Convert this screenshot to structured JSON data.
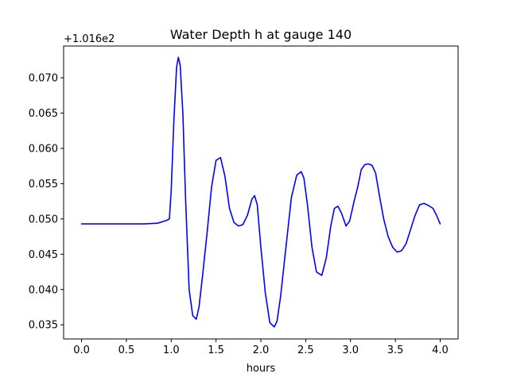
{
  "chart_data": {
    "type": "line",
    "title": "Water Depth h at gauge 140",
    "xlabel": "hours",
    "ylabel": "",
    "y_offset_text": "+1.016e2",
    "xlim": [
      -0.2,
      4.2
    ],
    "ylim": [
      0.033,
      0.0745
    ],
    "x_ticks": [
      0.0,
      0.5,
      1.0,
      1.5,
      2.0,
      2.5,
      3.0,
      3.5,
      4.0
    ],
    "x_tick_labels": [
      "0.0",
      "0.5",
      "1.0",
      "1.5",
      "2.0",
      "2.5",
      "3.0",
      "3.5",
      "4.0"
    ],
    "y_ticks": [
      0.035,
      0.04,
      0.045,
      0.05,
      0.055,
      0.06,
      0.065,
      0.07
    ],
    "y_tick_labels": [
      "0.035",
      "0.040",
      "0.045",
      "0.050",
      "0.055",
      "0.060",
      "0.065",
      "0.070"
    ],
    "grid": false,
    "series": [
      {
        "color": "#0000ff",
        "x": [
          0.0,
          0.25,
          0.5,
          0.7,
          0.85,
          0.9,
          0.95,
          0.98,
          1.0,
          1.03,
          1.06,
          1.08,
          1.1,
          1.13,
          1.16,
          1.2,
          1.24,
          1.28,
          1.31,
          1.35,
          1.4,
          1.45,
          1.5,
          1.55,
          1.6,
          1.65,
          1.7,
          1.75,
          1.8,
          1.85,
          1.9,
          1.93,
          1.96,
          2.0,
          2.05,
          2.1,
          2.15,
          2.18,
          2.22,
          2.28,
          2.34,
          2.4,
          2.45,
          2.48,
          2.52,
          2.57,
          2.62,
          2.68,
          2.73,
          2.78,
          2.82,
          2.86,
          2.9,
          2.95,
          2.99,
          3.04,
          3.08,
          3.12,
          3.16,
          3.2,
          3.24,
          3.28,
          3.32,
          3.37,
          3.42,
          3.47,
          3.52,
          3.57,
          3.62,
          3.67,
          3.72,
          3.77,
          3.82,
          3.87,
          3.92,
          3.96,
          4.0
        ],
        "y": [
          0.0493,
          0.0493,
          0.0493,
          0.0493,
          0.0494,
          0.0496,
          0.0498,
          0.05,
          0.054,
          0.064,
          0.0715,
          0.0729,
          0.0718,
          0.065,
          0.053,
          0.04,
          0.0363,
          0.0358,
          0.0375,
          0.042,
          0.048,
          0.0545,
          0.0583,
          0.0587,
          0.056,
          0.0515,
          0.0495,
          0.049,
          0.0492,
          0.0505,
          0.0528,
          0.0533,
          0.052,
          0.046,
          0.0395,
          0.0353,
          0.0347,
          0.0355,
          0.039,
          0.046,
          0.053,
          0.0562,
          0.0567,
          0.0558,
          0.052,
          0.046,
          0.0425,
          0.042,
          0.0445,
          0.049,
          0.0515,
          0.0518,
          0.0508,
          0.049,
          0.0497,
          0.0525,
          0.0545,
          0.057,
          0.0577,
          0.0578,
          0.0576,
          0.0565,
          0.0535,
          0.05,
          0.0475,
          0.046,
          0.0453,
          0.0455,
          0.0465,
          0.0485,
          0.0505,
          0.052,
          0.0522,
          0.0519,
          0.0515,
          0.0505,
          0.0493
        ]
      }
    ]
  }
}
